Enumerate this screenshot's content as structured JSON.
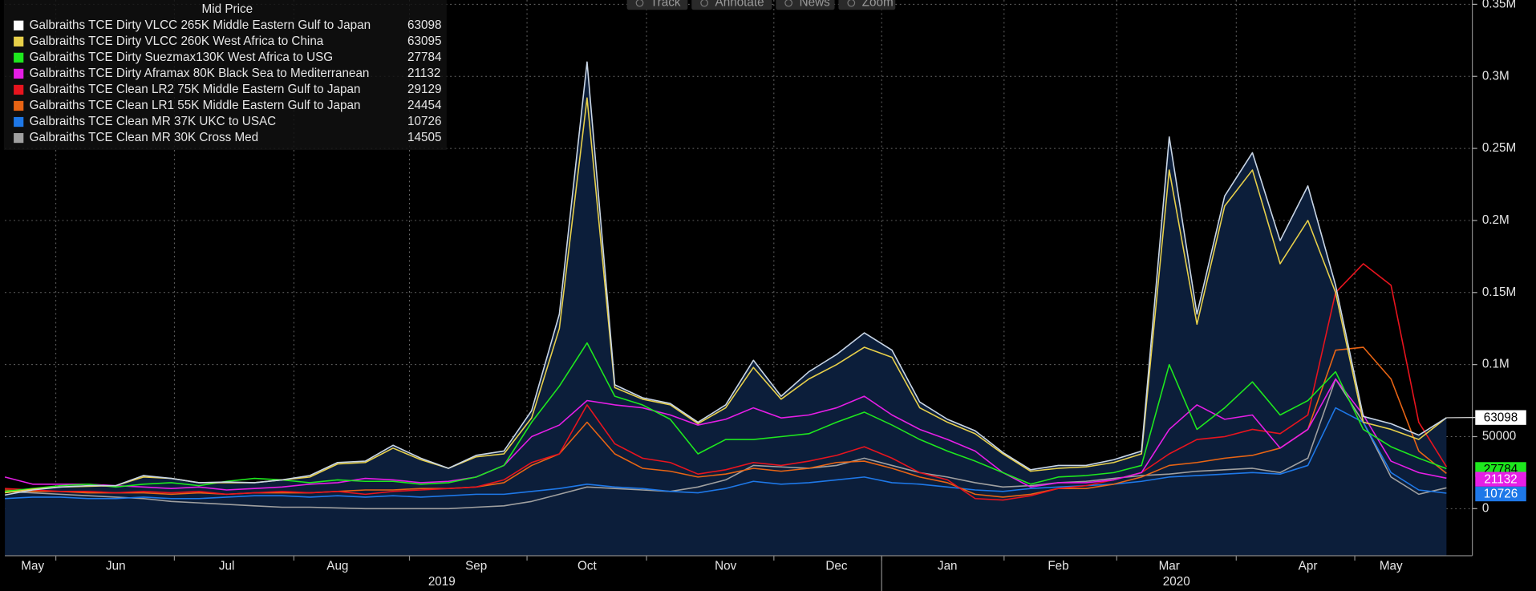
{
  "toolbar": [
    "Track",
    "Annotate",
    "News",
    "Zoom"
  ],
  "chart_data": {
    "type": "line",
    "legend_title": "Mid Price",
    "categories": [
      null,
      "May",
      null,
      null,
      "Jun",
      null,
      null,
      null,
      "Jul",
      null,
      null,
      null,
      "Aug",
      null,
      null,
      null,
      null,
      "Sep",
      null,
      null,
      null,
      "Oct",
      null,
      null,
      null,
      null,
      "Nov",
      null,
      null,
      null,
      "Dec",
      null,
      null,
      null,
      "Jan",
      null,
      null,
      null,
      "Feb",
      null,
      null,
      null,
      "Mar",
      null,
      null,
      null,
      null,
      "Apr",
      null,
      null,
      "May",
      null,
      null
    ],
    "year_labels": [
      "2019",
      "2020"
    ],
    "ylim": [
      -32650,
      353000
    ],
    "yticks": [
      0,
      50000,
      {
        "value": 100000,
        "label": "0.1M"
      },
      {
        "value": 150000,
        "label": "0.15M"
      },
      {
        "value": 200000,
        "label": "0.2M"
      },
      {
        "value": 250000,
        "label": "0.25M"
      },
      {
        "value": 300000,
        "label": "0.3M"
      },
      {
        "value": 350000,
        "label": "0.35M"
      }
    ],
    "grid": true,
    "legend": "upper left",
    "area_series": 0,
    "area_color": "#0c1e3a",
    "series": [
      {
        "name": "Galbraiths TCE Dirty VLCC 265K Middle Eastern Gulf to Japan",
        "color": "#ffffff",
        "line_color": "#c9d6e6",
        "values": [
          9500,
          13000,
          15000,
          16000,
          16000,
          23000,
          21000,
          18000,
          18500,
          18000,
          20000,
          23000,
          32000,
          33000,
          44000,
          35000,
          28000,
          37000,
          40000,
          68000,
          135000,
          310000,
          86000,
          77000,
          73000,
          60000,
          72000,
          103000,
          78000,
          95000,
          107000,
          122000,
          110000,
          74000,
          62000,
          54000,
          39000,
          27000,
          30000,
          30000,
          34000,
          40000,
          258000,
          135000,
          217000,
          247000,
          186000,
          224000,
          155000,
          64000,
          59000,
          51000,
          63098
        ]
      },
      {
        "name": "Galbraiths TCE Dirty VLCC 260K West Africa to China",
        "color": "#e8d04a",
        "values": [
          11000,
          13500,
          15000,
          15500,
          16000,
          22000,
          21000,
          18000,
          18000,
          18000,
          20000,
          22000,
          31000,
          32000,
          42000,
          34000,
          28000,
          36000,
          38000,
          63000,
          125000,
          285000,
          84000,
          76000,
          72000,
          59000,
          70000,
          98000,
          76000,
          90000,
          100000,
          112000,
          105000,
          70000,
          60000,
          52000,
          38000,
          26000,
          28000,
          29000,
          32000,
          38000,
          235000,
          128000,
          210000,
          235000,
          170000,
          200000,
          150000,
          60000,
          55000,
          48000,
          63095
        ]
      },
      {
        "name": "Galbraiths TCE Dirty Suezmax130K West Africa to USG",
        "color": "#1ee81e",
        "values": [
          12000,
          14000,
          16000,
          17000,
          15000,
          17000,
          18000,
          16000,
          19000,
          21000,
          20000,
          18000,
          20000,
          19000,
          19000,
          17000,
          18000,
          22000,
          30000,
          60000,
          85000,
          115000,
          78000,
          72000,
          62000,
          38000,
          48000,
          48000,
          50000,
          52000,
          60000,
          67000,
          58000,
          48000,
          40000,
          33000,
          25000,
          17000,
          22000,
          23000,
          25000,
          30000,
          100000,
          55000,
          70000,
          88000,
          65000,
          75000,
          95000,
          55000,
          43000,
          35000,
          27784
        ]
      },
      {
        "name": "Galbraiths TCE Dirty Aframax 80K Black Sea to Mediterranean",
        "color": "#e61ee6",
        "values": [
          22000,
          17000,
          17000,
          17000,
          16000,
          15000,
          14000,
          15000,
          13000,
          14000,
          15000,
          17000,
          18000,
          21000,
          20000,
          18000,
          19000,
          22000,
          30000,
          50000,
          58000,
          75000,
          72000,
          70000,
          65000,
          58000,
          62000,
          70000,
          63000,
          65000,
          70000,
          78000,
          65000,
          55000,
          48000,
          40000,
          25000,
          15000,
          18000,
          18000,
          20000,
          25000,
          55000,
          72000,
          62000,
          65000,
          42000,
          55000,
          90000,
          65000,
          33000,
          25000,
          21132
        ]
      },
      {
        "name": "Galbraiths TCE Clean LR2 75K Middle Eastern Gulf to Japan",
        "color": "#e8141e",
        "values": [
          14000,
          13000,
          12000,
          12000,
          11000,
          12000,
          11000,
          12000,
          10000,
          11000,
          12000,
          11000,
          12000,
          10000,
          12000,
          13000,
          14000,
          15000,
          20000,
          32000,
          38000,
          72000,
          45000,
          35000,
          32000,
          24000,
          27000,
          32000,
          30000,
          33000,
          37000,
          43000,
          35000,
          25000,
          20000,
          7000,
          6000,
          9000,
          14000,
          16000,
          20000,
          25000,
          38000,
          48000,
          50000,
          55000,
          52000,
          65000,
          150000,
          170000,
          155000,
          60000,
          29129
        ]
      },
      {
        "name": "Galbraiths TCE Clean LR1 55K Middle Eastern Gulf to Japan",
        "color": "#e86414",
        "values": [
          13000,
          12000,
          12000,
          11000,
          11000,
          11000,
          10000,
          11000,
          10000,
          11000,
          11000,
          11000,
          12000,
          13000,
          13000,
          14000,
          14000,
          15000,
          18000,
          30000,
          38000,
          60000,
          38000,
          28000,
          26000,
          22000,
          24000,
          28000,
          26000,
          28000,
          32000,
          33000,
          28000,
          22000,
          18000,
          10000,
          8000,
          10000,
          14000,
          14000,
          17000,
          22000,
          30000,
          32000,
          35000,
          37000,
          42000,
          55000,
          110000,
          112000,
          90000,
          40000,
          24454
        ]
      },
      {
        "name": "Galbraiths TCE Clean MR 37K UKC to USAC",
        "color": "#1e78e8",
        "values": [
          7000,
          8000,
          8000,
          7000,
          7000,
          8000,
          7000,
          7000,
          8000,
          9000,
          9000,
          8000,
          9000,
          8000,
          9000,
          8000,
          9000,
          10000,
          10000,
          12000,
          14000,
          17000,
          15000,
          14000,
          12000,
          11000,
          14000,
          19000,
          17000,
          18000,
          20000,
          22000,
          18000,
          17000,
          15000,
          13000,
          12000,
          14000,
          15000,
          16000,
          17000,
          19000,
          22000,
          23000,
          24000,
          25000,
          24000,
          30000,
          70000,
          60000,
          25000,
          13000,
          10726
        ]
      },
      {
        "name": "Galbraiths TCE Clean MR 30K Cross Med",
        "color": "#a0a0a0",
        "values": [
          12000,
          11000,
          10000,
          9000,
          8000,
          7000,
          5000,
          4000,
          3000,
          2000,
          1000,
          1000,
          500,
          0,
          0,
          0,
          0,
          1000,
          2000,
          5000,
          10000,
          15000,
          14000,
          13000,
          12000,
          15000,
          20000,
          30000,
          29000,
          28000,
          30000,
          35000,
          30000,
          25000,
          22000,
          18000,
          15000,
          16000,
          18000,
          19000,
          21000,
          23000,
          24000,
          26000,
          27000,
          28000,
          25000,
          35000,
          90000,
          60000,
          22000,
          10000,
          14505
        ]
      }
    ],
    "end_labels": [
      0,
      2,
      3,
      6
    ]
  }
}
